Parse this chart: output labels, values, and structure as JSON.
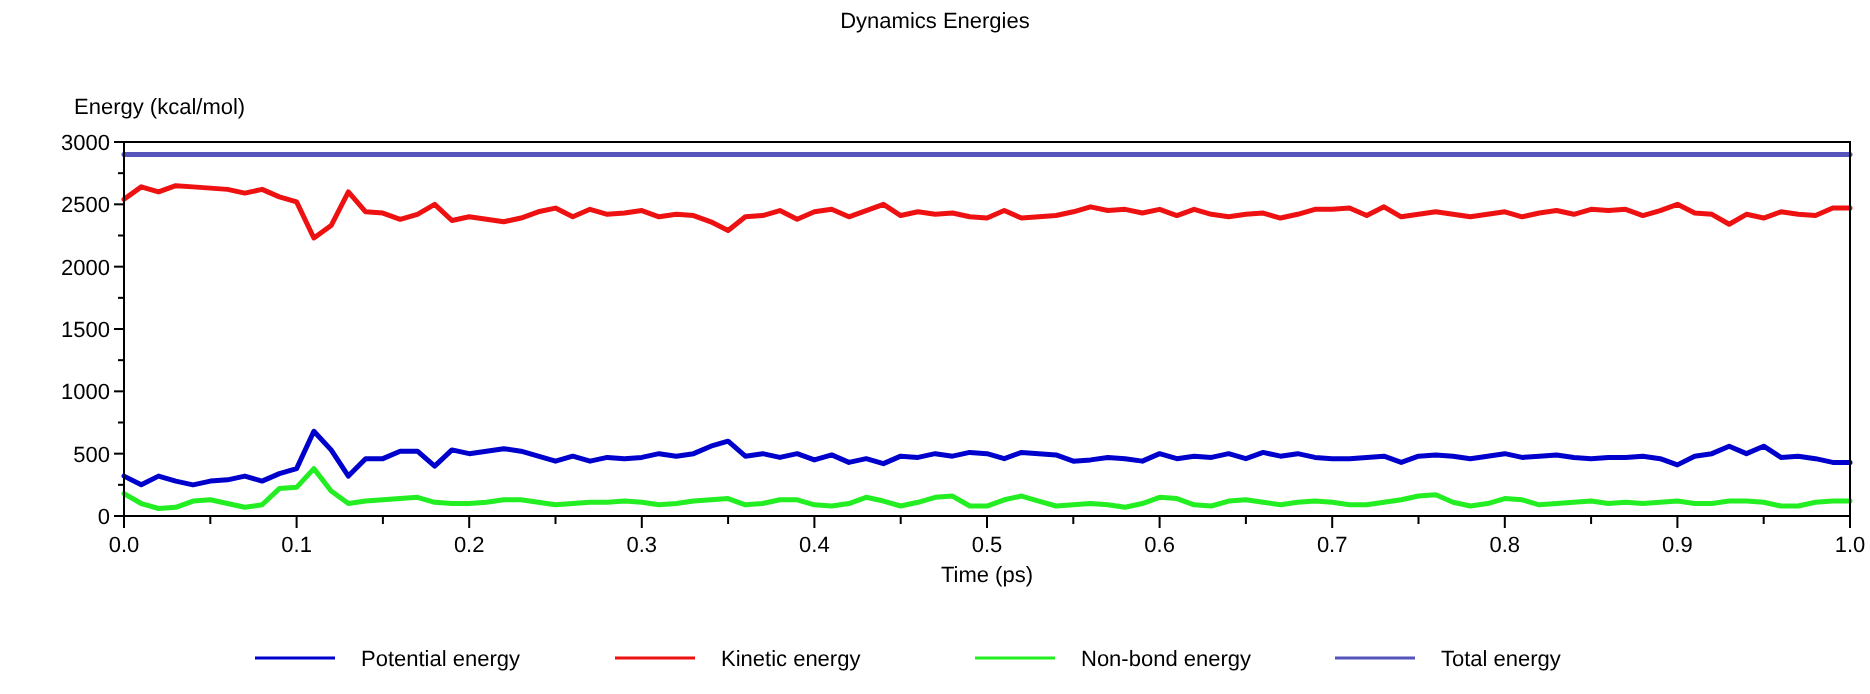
{
  "chart_data": {
    "type": "line",
    "title": "Dynamics Energies",
    "xlabel": "Time (ps)",
    "ylabel": "Energy (kcal/mol)",
    "x": [
      0,
      0.01,
      0.02,
      0.03,
      0.04,
      0.05,
      0.06,
      0.07,
      0.08,
      0.09,
      0.1,
      0.11,
      0.12,
      0.13,
      0.14,
      0.15,
      0.16,
      0.17,
      0.18,
      0.19,
      0.2,
      0.21,
      0.22,
      0.23,
      0.24,
      0.25,
      0.26,
      0.27,
      0.28,
      0.29,
      0.3,
      0.31,
      0.32,
      0.33,
      0.34,
      0.35,
      0.36,
      0.37,
      0.38,
      0.39,
      0.4,
      0.41,
      0.42,
      0.43,
      0.44,
      0.45,
      0.46,
      0.47,
      0.48,
      0.49,
      0.5,
      0.51,
      0.52,
      0.53,
      0.54,
      0.55,
      0.56,
      0.57,
      0.58,
      0.59,
      0.6,
      0.61,
      0.62,
      0.63,
      0.64,
      0.65,
      0.66,
      0.67,
      0.68,
      0.69,
      0.7,
      0.71,
      0.72,
      0.73,
      0.74,
      0.75,
      0.76,
      0.77,
      0.78,
      0.79,
      0.8,
      0.81,
      0.82,
      0.83,
      0.84,
      0.85,
      0.86,
      0.87,
      0.88,
      0.89,
      0.9,
      0.91,
      0.92,
      0.93,
      0.94,
      0.95,
      0.96,
      0.97,
      0.98,
      0.99,
      1
    ],
    "series": [
      {
        "name": "Potential energy",
        "color": "#0000cc",
        "values": [
          320,
          250,
          320,
          280,
          250,
          280,
          290,
          320,
          280,
          340,
          380,
          680,
          530,
          320,
          460,
          460,
          520,
          520,
          400,
          530,
          500,
          520,
          540,
          520,
          480,
          440,
          480,
          440,
          470,
          460,
          470,
          500,
          480,
          500,
          560,
          600,
          480,
          500,
          470,
          500,
          450,
          490,
          430,
          460,
          420,
          480,
          470,
          500,
          480,
          510,
          500,
          460,
          510,
          500,
          490,
          440,
          450,
          470,
          460,
          440,
          500,
          460,
          480,
          470,
          500,
          460,
          510,
          480,
          500,
          470,
          460,
          460,
          470,
          480,
          430,
          480,
          490,
          480,
          460,
          480,
          500,
          470,
          480,
          490,
          470,
          460,
          470,
          470,
          480,
          460,
          410,
          480,
          500,
          560,
          500,
          560,
          470,
          480,
          460,
          430,
          430
        ]
      },
      {
        "name": "Kinetic energy",
        "color": "#ee1111",
        "values": [
          2540,
          2640,
          2600,
          2650,
          2640,
          2630,
          2620,
          2590,
          2620,
          2560,
          2520,
          2230,
          2330,
          2600,
          2440,
          2430,
          2380,
          2420,
          2500,
          2370,
          2400,
          2380,
          2360,
          2390,
          2440,
          2470,
          2400,
          2460,
          2420,
          2430,
          2450,
          2400,
          2420,
          2410,
          2360,
          2290,
          2400,
          2410,
          2450,
          2380,
          2440,
          2460,
          2400,
          2450,
          2500,
          2410,
          2440,
          2420,
          2430,
          2400,
          2390,
          2450,
          2390,
          2400,
          2410,
          2440,
          2480,
          2450,
          2460,
          2430,
          2460,
          2410,
          2460,
          2420,
          2400,
          2420,
          2430,
          2390,
          2420,
          2460,
          2460,
          2470,
          2410,
          2480,
          2400,
          2420,
          2440,
          2420,
          2400,
          2420,
          2440,
          2400,
          2430,
          2450,
          2420,
          2460,
          2450,
          2460,
          2410,
          2450,
          2500,
          2430,
          2420,
          2340,
          2420,
          2390,
          2440,
          2420,
          2410,
          2470,
          2470
        ]
      },
      {
        "name": "Non-bond energy",
        "color": "#22ee22",
        "values": [
          180,
          100,
          60,
          70,
          120,
          130,
          100,
          70,
          90,
          220,
          230,
          380,
          200,
          100,
          120,
          130,
          140,
          150,
          110,
          100,
          100,
          110,
          130,
          130,
          110,
          90,
          100,
          110,
          110,
          120,
          110,
          90,
          100,
          120,
          130,
          140,
          90,
          100,
          130,
          130,
          90,
          80,
          100,
          150,
          120,
          80,
          110,
          150,
          160,
          80,
          80,
          130,
          160,
          120,
          80,
          90,
          100,
          90,
          70,
          100,
          150,
          140,
          90,
          80,
          120,
          130,
          110,
          90,
          110,
          120,
          110,
          90,
          90,
          110,
          130,
          160,
          170,
          110,
          80,
          100,
          140,
          130,
          90,
          100,
          110,
          120,
          100,
          110,
          100,
          110,
          120,
          100,
          100,
          120,
          120,
          110,
          80,
          80,
          110,
          120,
          120
        ]
      },
      {
        "name": "Total energy",
        "color": "#5555bb",
        "values": [
          2900,
          2900,
          2900,
          2900,
          2900,
          2900,
          2900,
          2900,
          2900,
          2900,
          2900,
          2900,
          2900,
          2900,
          2900,
          2900,
          2900,
          2900,
          2900,
          2900,
          2900,
          2900,
          2900,
          2900,
          2900,
          2900,
          2900,
          2900,
          2900,
          2900,
          2900,
          2900,
          2900,
          2900,
          2900,
          2900,
          2900,
          2900,
          2900,
          2900,
          2900,
          2900,
          2900,
          2900,
          2900,
          2900,
          2900,
          2900,
          2900,
          2900,
          2900,
          2900,
          2900,
          2900,
          2900,
          2900,
          2900,
          2900,
          2900,
          2900,
          2900,
          2900,
          2900,
          2900,
          2900,
          2900,
          2900,
          2900,
          2900,
          2900,
          2900,
          2900,
          2900,
          2900,
          2900,
          2900,
          2900,
          2900,
          2900,
          2900,
          2900,
          2900,
          2900,
          2900,
          2900,
          2900,
          2900,
          2900,
          2900,
          2900,
          2900,
          2900,
          2900,
          2900,
          2900,
          2900,
          2900,
          2900,
          2900,
          2900,
          2900
        ]
      }
    ],
    "xlim": [
      0,
      1
    ],
    "xticks": [
      {
        "value": 0,
        "label": "0.0"
      },
      {
        "value": 0.05,
        "label": null
      },
      0.1,
      {
        "value": 0.15,
        "label": null
      },
      0.2,
      {
        "value": 0.25,
        "label": null
      },
      0.3,
      {
        "value": 0.35,
        "label": null
      },
      0.4,
      {
        "value": 0.45,
        "label": null
      },
      0.5,
      {
        "value": 0.55,
        "label": null
      },
      0.6,
      {
        "value": 0.65,
        "label": null
      },
      0.7,
      {
        "value": 0.75,
        "label": null
      },
      0.8,
      {
        "value": 0.85,
        "label": null
      },
      0.9,
      {
        "value": 0.95,
        "label": null
      },
      {
        "value": 1,
        "label": "1.0"
      }
    ],
    "ylim": [
      0,
      3000
    ],
    "yticks": [
      0,
      {
        "value": 250,
        "label": null
      },
      500,
      {
        "value": 750,
        "label": null
      },
      1000,
      {
        "value": 1250,
        "label": null
      },
      1500,
      {
        "value": 1750,
        "label": null
      },
      2000,
      {
        "value": 2250,
        "label": null
      },
      2500,
      {
        "value": 2750,
        "label": null
      },
      3000
    ],
    "legend": "bottom",
    "marker": "none",
    "line_style": "solid"
  }
}
